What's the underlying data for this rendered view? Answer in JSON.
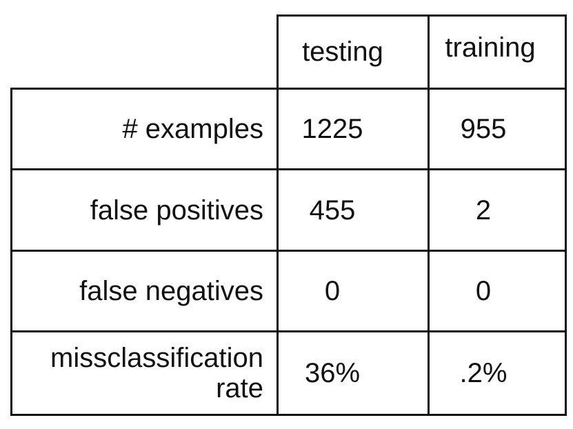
{
  "table": {
    "columns": [
      "testing",
      "training"
    ],
    "rows": [
      [
        "# examples",
        "1225",
        "955"
      ],
      [
        "false positives",
        "455",
        "2"
      ],
      [
        "false negatives",
        "0",
        "0"
      ],
      [
        "missclassification rate",
        "36%",
        ".2%"
      ]
    ]
  }
}
